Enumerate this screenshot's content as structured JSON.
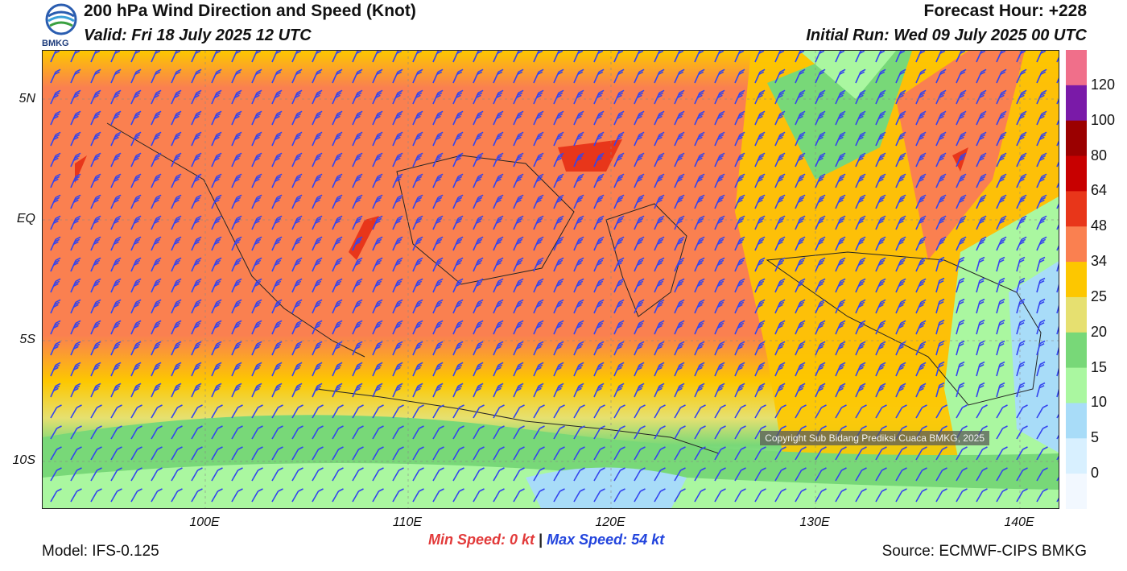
{
  "header": {
    "title": "200 hPa Wind Direction and Speed (Knot)",
    "valid": "Valid: Fri 18 July 2025 12 UTC",
    "forecast_hour": "Forecast Hour: +228",
    "initial_run": "Initial Run: Wed 09 July 2025 00 UTC",
    "logo_text": "BMKG"
  },
  "map": {
    "lat_labels": [
      "5N",
      "EQ",
      "5S",
      "10S"
    ],
    "lon_labels": [
      "100E",
      "110E",
      "120E",
      "130E",
      "140E"
    ],
    "copyright": "Copyright Sub Bidang Prediksi Cuaca BMKG, 2025"
  },
  "colorbar": {
    "labels": [
      "120",
      "100",
      "80",
      "64",
      "48",
      "34",
      "25",
      "20",
      "15",
      "10",
      "5",
      "0"
    ],
    "colors": [
      "#f06f8a",
      "#7a1aa8",
      "#9b0000",
      "#c80000",
      "#e8361a",
      "#fa8050",
      "#fdc700",
      "#e6e070",
      "#78d878",
      "#aaf7a0",
      "#a8dcf8",
      "#d8f0ff",
      "#f2f8ff"
    ]
  },
  "footer": {
    "min_label": "Min Speed:",
    "min_value": "0 kt",
    "separator": "|",
    "max_label": "Max Speed:",
    "max_value": "54 kt",
    "model": "Model: IFS-0.125",
    "source": "Source: ECMWF-CIPS BMKG"
  }
}
